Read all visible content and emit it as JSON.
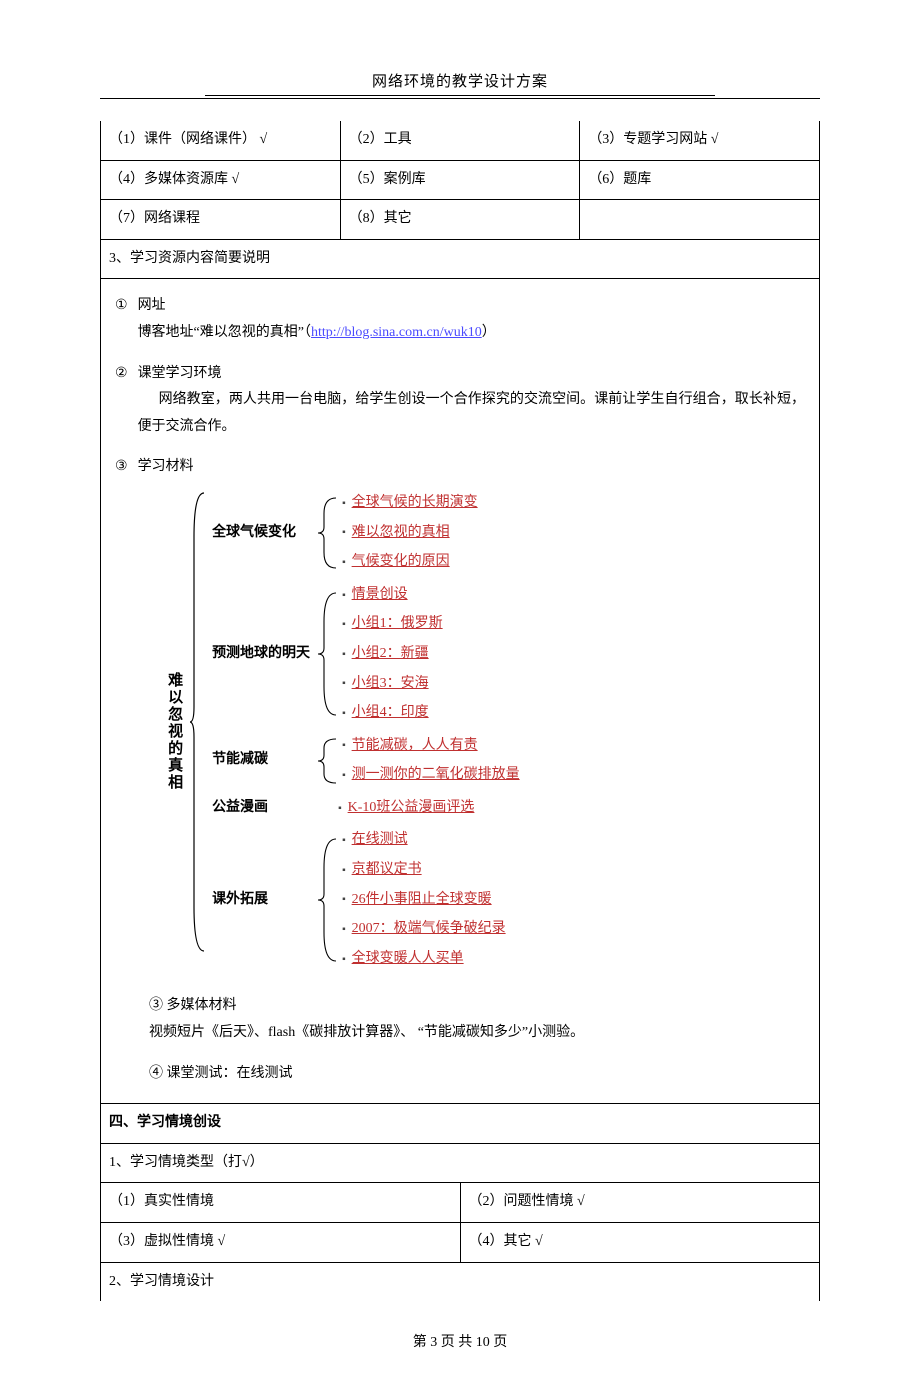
{
  "header": {
    "title": "网络环境的教学设计方案"
  },
  "resource_types": {
    "r1": "（1）课件（网络课件） √",
    "r2": "（2）工具",
    "r3": "（3）专题学习网站   √",
    "r4": "（4）多媒体资源库       √",
    "r5": "（5）案例库",
    "r6": "（6）题库",
    "r7": "（7）网络课程",
    "r8": "（8）其它"
  },
  "row_resource_desc": "3、学习资源内容简要说明",
  "content": {
    "c1_num": "①",
    "c1_label": "网址",
    "c1_text_a": "博客地址“难以忽视的真相”（",
    "c1_link": "http://blog.sina.com.cn/wuk10",
    "c1_text_b": "）",
    "c2_num": "②",
    "c2_label": "课堂学习环境",
    "c2_text": "网络教室，两人共用一台电脑，给学生创设一个合作探究的交流空间。课前让学生自行组合，取长补短，便于交流合作。",
    "c3_num": "③",
    "c3_label": "学习材料",
    "root_label": "难以忽视的真相",
    "branches": [
      {
        "label": "全球气候变化",
        "items": [
          "全球气候的长期演变",
          "难以忽视的真相",
          "气候变化的原因"
        ]
      },
      {
        "label": "预测地球的明天",
        "items": [
          "情景创设",
          "小组1：俄罗斯",
          "小组2：新疆",
          "小组3：安海",
          "小组4：印度"
        ]
      },
      {
        "label": "节能减碳",
        "items": [
          "节能减碳，人人有责",
          "测一测你的二氧化碳排放量"
        ]
      },
      {
        "label": "公益漫画",
        "items": [
          "K-10班公益漫画评选"
        ]
      },
      {
        "label": "课外拓展",
        "items": [
          "在线测试",
          "京都议定书",
          "26件小事阻止全球变暖",
          "2007：极端气候争破纪录",
          "全球变暖人人买单"
        ]
      }
    ],
    "c3b_num": "③",
    "c3b_label": "多媒体材料",
    "c3b_text": "视频短片《后天》、flash《碳排放计算器》、  “节能减碳知多少”小测验。",
    "c4_num": "④",
    "c4_label": "课堂测试：在线测试"
  },
  "section4": "四、学习情境创设",
  "situation_type_header": "1、学习情境类型（打√）",
  "situation": {
    "s1": "（1）真实性情境",
    "s2": "（2）问题性情境    √",
    "s3": "（3）虚拟性情境    √",
    "s4": "（4）其它      √"
  },
  "situation_design": "2、学习情境设计",
  "footer": {
    "text": "第 3 页 共 10 页"
  },
  "colors": {
    "link_blue": "#4a4aff",
    "link_red": "#c03030",
    "border": "#000000",
    "bullet": "#444444"
  }
}
